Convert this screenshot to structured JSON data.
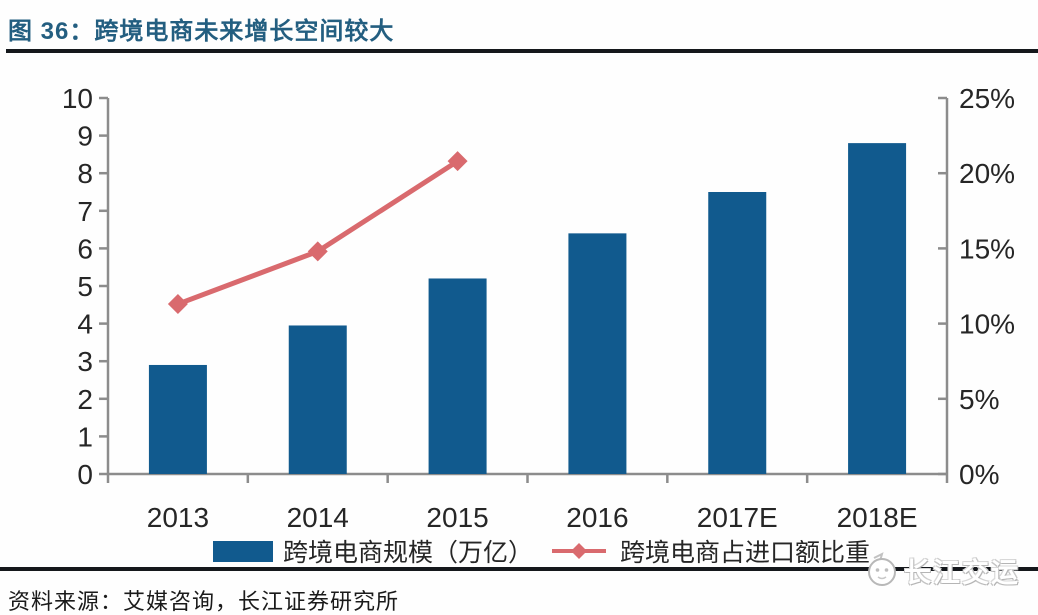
{
  "figure": {
    "title": "图 36：跨境电商未来增长空间较大",
    "source": "资料来源：艾媒咨询，长江证券研究所",
    "watermark": "长江交运"
  },
  "legend": {
    "bar_label": "跨境电商规模（万亿）",
    "line_label": "跨境电商占进口额比重"
  },
  "colors": {
    "bar": "#115a8e",
    "line": "#d96a6e",
    "title": "#235e80",
    "axis": "#8c8c8c",
    "tick_text": "#262626",
    "rule": "#15181c"
  },
  "chart_data": {
    "type": "bar",
    "title": "跨境电商未来增长空间较大",
    "categories": [
      "2013",
      "2014",
      "2015",
      "2016",
      "2017E",
      "2018E"
    ],
    "series": [
      {
        "name": "跨境电商规模（万亿）",
        "type": "bar",
        "axis": "left",
        "values": [
          2.9,
          3.95,
          5.2,
          6.4,
          7.5,
          8.8
        ]
      },
      {
        "name": "跨境电商占进口额比重",
        "type": "line",
        "axis": "right",
        "unit": "%",
        "values": [
          11.3,
          14.8,
          20.8,
          null,
          null,
          null
        ]
      }
    ],
    "left_axis": {
      "min": 0,
      "max": 10,
      "step": 1,
      "ticks": [
        "0",
        "1",
        "2",
        "3",
        "4",
        "5",
        "6",
        "7",
        "8",
        "9",
        "10"
      ]
    },
    "right_axis": {
      "min": 0,
      "max": 25,
      "step": 5,
      "ticks": [
        "0%",
        "5%",
        "10%",
        "15%",
        "20%",
        "25%"
      ]
    },
    "grid": false,
    "legend_position": "bottom"
  }
}
